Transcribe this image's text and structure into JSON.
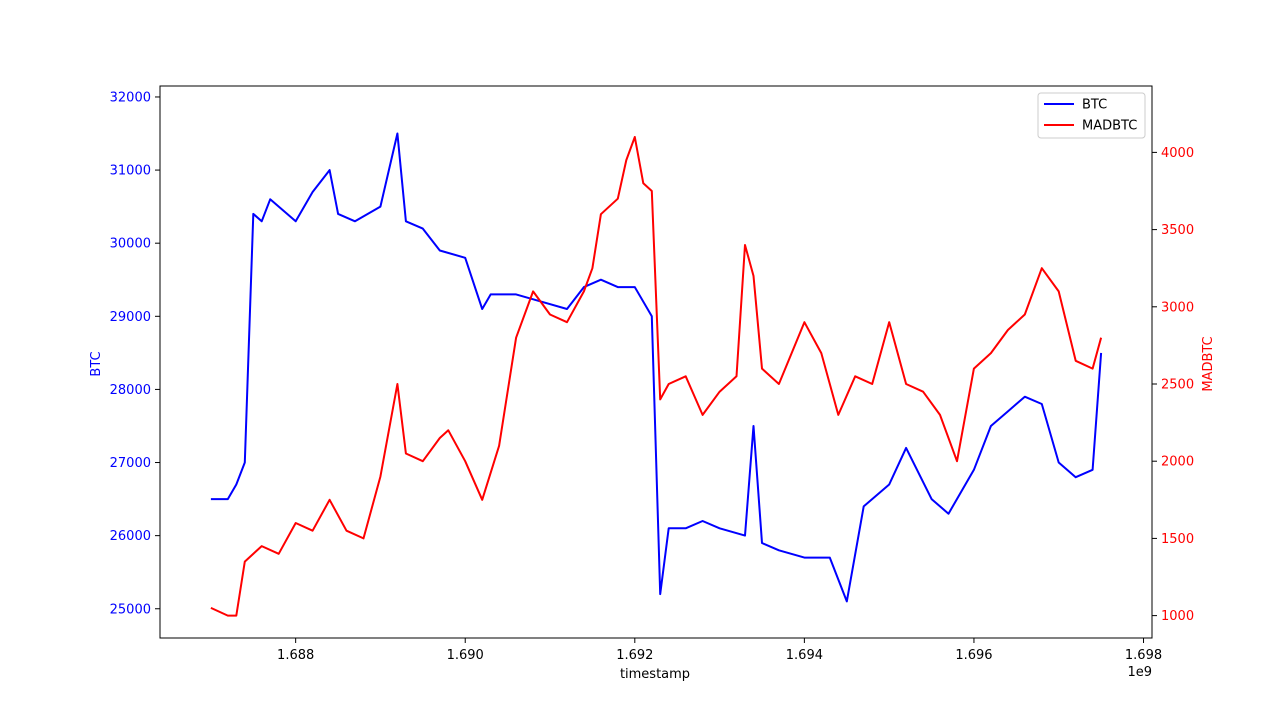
{
  "chart_data": {
    "type": "line",
    "title": "",
    "xlabel": "timestamp",
    "x_offset_label": "1e9",
    "x_ticks": [
      "1.688",
      "1.690",
      "1.692",
      "1.694",
      "1.696",
      "1.698"
    ],
    "x_tick_values": [
      1.688,
      1.69,
      1.692,
      1.694,
      1.696,
      1.698
    ],
    "xlim": [
      1.6864,
      1.6981
    ],
    "grid": false,
    "legend_position": "upper-right",
    "axes": {
      "left": {
        "label": "BTC",
        "color": "#0000ff",
        "ylim": [
          24600,
          32150
        ],
        "ticks": [
          "25000",
          "26000",
          "27000",
          "28000",
          "29000",
          "30000",
          "31000",
          "32000"
        ],
        "tick_values": [
          25000,
          26000,
          27000,
          28000,
          29000,
          30000,
          31000,
          32000
        ]
      },
      "right": {
        "label": "MADBTC",
        "color": "#ff0000",
        "ylim": [
          855,
          4430
        ],
        "ticks": [
          "1000",
          "1500",
          "2000",
          "2500",
          "3000",
          "3500",
          "4000"
        ],
        "tick_values": [
          1000,
          1500,
          2000,
          2500,
          3000,
          3500,
          4000
        ]
      }
    },
    "series": [
      {
        "name": "BTC",
        "axis": "left",
        "color": "#0000ff",
        "x": [
          1.687,
          1.6872,
          1.6873,
          1.6874,
          1.6875,
          1.6876,
          1.6877,
          1.688,
          1.6882,
          1.6884,
          1.6885,
          1.6887,
          1.689,
          1.6892,
          1.6893,
          1.6895,
          1.6897,
          1.69,
          1.6902,
          1.6903,
          1.6906,
          1.6909,
          1.6912,
          1.6914,
          1.6916,
          1.6918,
          1.692,
          1.6922,
          1.6923,
          1.6924,
          1.6926,
          1.6928,
          1.693,
          1.6933,
          1.6934,
          1.6935,
          1.6937,
          1.694,
          1.6943,
          1.6945,
          1.6947,
          1.695,
          1.6952,
          1.6955,
          1.6957,
          1.696,
          1.6962,
          1.6964,
          1.6966,
          1.6968,
          1.697,
          1.6972,
          1.6974,
          1.6975
        ],
        "values": [
          26500,
          26500,
          26700,
          27000,
          30400,
          30300,
          30600,
          30300,
          30700,
          31000,
          30400,
          30300,
          30500,
          31500,
          30300,
          30200,
          29900,
          29800,
          29100,
          29300,
          29300,
          29200,
          29100,
          29400,
          29500,
          29400,
          29400,
          29000,
          25200,
          26100,
          26100,
          26200,
          26100,
          26000,
          27500,
          25900,
          25800,
          25700,
          25700,
          25100,
          26400,
          26700,
          27200,
          26500,
          26300,
          26900,
          27500,
          27700,
          27900,
          27800,
          27000,
          26800,
          26900,
          28500
        ]
      },
      {
        "name": "MADBTC",
        "axis": "right",
        "color": "#ff0000",
        "x": [
          1.687,
          1.6872,
          1.6873,
          1.6874,
          1.6876,
          1.6878,
          1.688,
          1.6882,
          1.6884,
          1.6886,
          1.6888,
          1.689,
          1.6892,
          1.6893,
          1.6895,
          1.6897,
          1.6898,
          1.69,
          1.6902,
          1.6904,
          1.6906,
          1.6908,
          1.691,
          1.6912,
          1.6914,
          1.6915,
          1.6916,
          1.6918,
          1.6919,
          1.692,
          1.6921,
          1.6922,
          1.6923,
          1.6924,
          1.6926,
          1.6928,
          1.693,
          1.6932,
          1.6933,
          1.6934,
          1.6935,
          1.6937,
          1.694,
          1.6942,
          1.6944,
          1.6946,
          1.6948,
          1.695,
          1.6952,
          1.6954,
          1.6956,
          1.6958,
          1.696,
          1.6962,
          1.6964,
          1.6966,
          1.6968,
          1.697,
          1.6972,
          1.6974,
          1.6975
        ],
        "values": [
          1050,
          1000,
          1000,
          1350,
          1450,
          1400,
          1600,
          1550,
          1750,
          1550,
          1500,
          1900,
          2500,
          2050,
          2000,
          2150,
          2200,
          2000,
          1750,
          2100,
          2800,
          3100,
          2950,
          2900,
          3100,
          3250,
          3600,
          3700,
          3950,
          4100,
          3800,
          3750,
          2400,
          2500,
          2550,
          2300,
          2450,
          2550,
          3400,
          3200,
          2600,
          2500,
          2900,
          2700,
          2300,
          2550,
          2500,
          2900,
          2500,
          2450,
          2300,
          2000,
          2600,
          2700,
          2850,
          2950,
          3250,
          3100,
          2650,
          2600,
          2800
        ]
      }
    ]
  }
}
